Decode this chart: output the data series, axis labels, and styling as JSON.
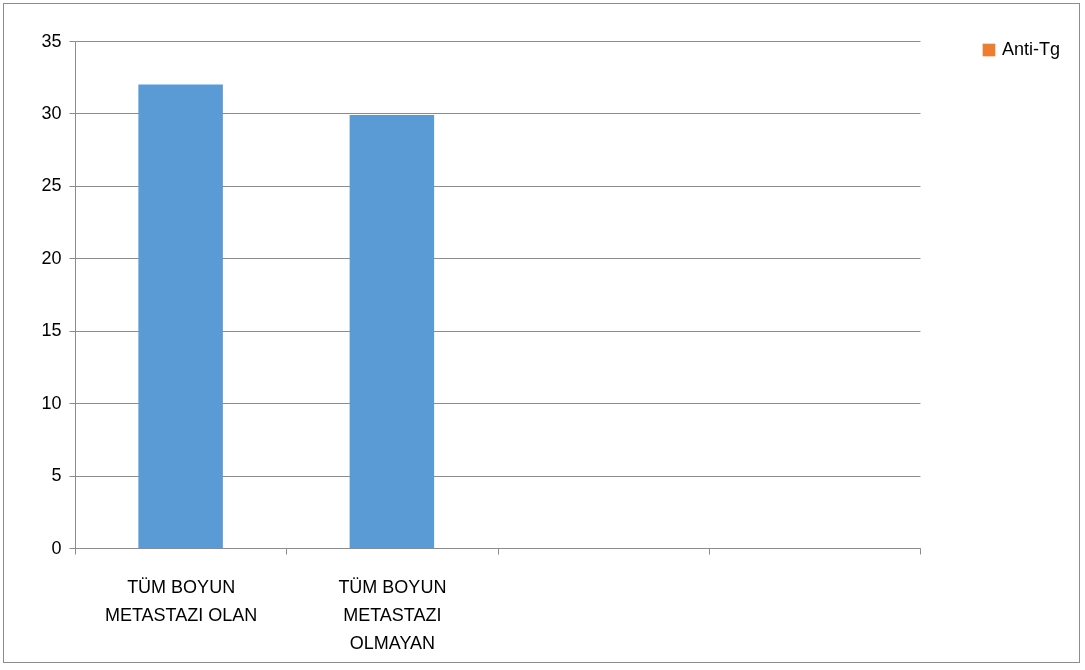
{
  "chart_data": {
    "type": "bar",
    "categories": [
      "TÜM BOYUN METASTAZI OLAN",
      "TÜM BOYUN METASTAZI OLMAYAN",
      null,
      null
    ],
    "series": [
      {
        "color": "#5b9bd5",
        "values": [
          32,
          29.9,
          null,
          null
        ]
      },
      {
        "name": "Anti-Tg",
        "color": "#ed7d31",
        "values": [
          null,
          null,
          null,
          null
        ]
      }
    ],
    "ylim": [
      0,
      35
    ],
    "yticks": [
      0,
      5,
      10,
      15,
      20,
      25,
      30,
      35
    ],
    "grid": "y",
    "legend": "right"
  }
}
